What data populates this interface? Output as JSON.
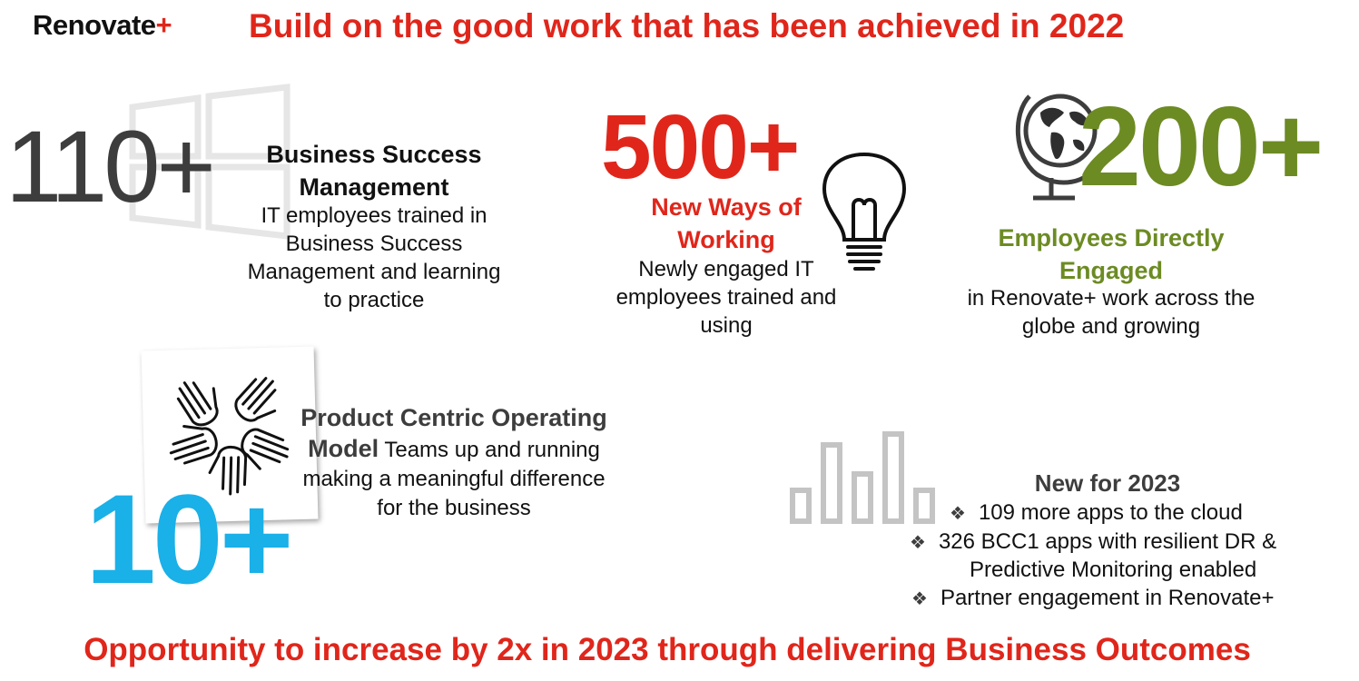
{
  "header": {
    "logo_text": "Renovate",
    "logo_plus": "+",
    "title": "Build on the good work that has been achieved in 2022"
  },
  "stat1": {
    "number": "110+",
    "title": "Business Success Management",
    "description": "IT employees trained in Business Success Management and learning to practice"
  },
  "stat2": {
    "number": "500+",
    "title": "New Ways of Working",
    "description": "Newly engaged IT employees trained and using"
  },
  "stat3": {
    "number": "200+",
    "title": "Employees Directly Engaged",
    "description": "in Renovate+ work across the globe and growing"
  },
  "stat4": {
    "number": "10+",
    "title": "Product Centric Operating Model",
    "description": "Teams up and running making a meaningful difference for the business"
  },
  "new2023": {
    "title": "New for 2023",
    "bullet_symbol": "❖",
    "items": [
      "109 more apps to the cloud",
      "326 BCC1 apps with resilient DR &",
      "Predictive Monitoring enabled",
      "Partner engagement in Renovate+"
    ]
  },
  "footer": {
    "text": "Opportunity to increase by 2x in 2023 through delivering Business Outcomes"
  },
  "colors": {
    "red": "#e0261b",
    "green": "#6c8b23",
    "blue": "#1ab0e8",
    "gray": "#3d3d3d"
  },
  "icons": [
    "windows-logo-icon",
    "light-bulb-icon",
    "globe-icon",
    "hands-circle-icon",
    "bar-chart-icon"
  ]
}
